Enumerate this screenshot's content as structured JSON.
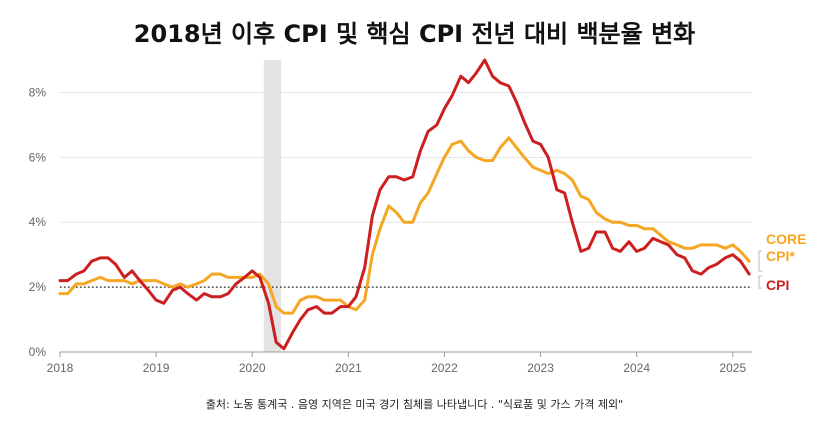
{
  "title": "2018년 이후 CPI 및 핵심 CPI 전년 대비 백분율 변화",
  "source_note": "출처: 노동 통계국 . 음영 지역은 미국 경기 침체를 나타냅니다 . \"식료품 및 가스 가격 제외\"",
  "chart_data": {
    "type": "line",
    "ylim": [
      0,
      9
    ],
    "xlim": [
      2018,
      2025.2
    ],
    "yticks": [
      {
        "value": 0,
        "label": "0%"
      },
      {
        "value": 2,
        "label": "2%"
      },
      {
        "value": 4,
        "label": "4%"
      },
      {
        "value": 6,
        "label": "6%"
      },
      {
        "value": 8,
        "label": "8%"
      }
    ],
    "xticks": [
      {
        "value": 2018,
        "label": "2018"
      },
      {
        "value": 2019,
        "label": "2019"
      },
      {
        "value": 2020,
        "label": "2020"
      },
      {
        "value": 2021,
        "label": "2021"
      },
      {
        "value": 2022,
        "label": "2022"
      },
      {
        "value": 2023,
        "label": "2023"
      },
      {
        "value": 2024,
        "label": "2024"
      },
      {
        "value": 2025,
        "label": "2025"
      }
    ],
    "reference_line": 2,
    "recession": [
      2020.12,
      2020.3
    ],
    "series": [
      {
        "name": "CPI",
        "label": "CPI",
        "color": "#cc1f1f",
        "values": [
          [
            2018.0,
            2.2
          ],
          [
            2018.08,
            2.2
          ],
          [
            2018.17,
            2.4
          ],
          [
            2018.25,
            2.5
          ],
          [
            2018.33,
            2.8
          ],
          [
            2018.42,
            2.9
          ],
          [
            2018.5,
            2.9
          ],
          [
            2018.58,
            2.7
          ],
          [
            2018.67,
            2.3
          ],
          [
            2018.75,
            2.5
          ],
          [
            2018.83,
            2.2
          ],
          [
            2018.92,
            1.9
          ],
          [
            2019.0,
            1.6
          ],
          [
            2019.08,
            1.5
          ],
          [
            2019.17,
            1.9
          ],
          [
            2019.25,
            2.0
          ],
          [
            2019.33,
            1.8
          ],
          [
            2019.42,
            1.6
          ],
          [
            2019.5,
            1.8
          ],
          [
            2019.58,
            1.7
          ],
          [
            2019.67,
            1.7
          ],
          [
            2019.75,
            1.8
          ],
          [
            2019.83,
            2.1
          ],
          [
            2019.92,
            2.3
          ],
          [
            2020.0,
            2.5
          ],
          [
            2020.08,
            2.3
          ],
          [
            2020.17,
            1.5
          ],
          [
            2020.25,
            0.3
          ],
          [
            2020.33,
            0.1
          ],
          [
            2020.42,
            0.6
          ],
          [
            2020.5,
            1.0
          ],
          [
            2020.58,
            1.3
          ],
          [
            2020.67,
            1.4
          ],
          [
            2020.75,
            1.2
          ],
          [
            2020.83,
            1.2
          ],
          [
            2020.92,
            1.4
          ],
          [
            2021.0,
            1.4
          ],
          [
            2021.08,
            1.7
          ],
          [
            2021.17,
            2.6
          ],
          [
            2021.25,
            4.2
          ],
          [
            2021.33,
            5.0
          ],
          [
            2021.42,
            5.4
          ],
          [
            2021.5,
            5.4
          ],
          [
            2021.58,
            5.3
          ],
          [
            2021.67,
            5.4
          ],
          [
            2021.75,
            6.2
          ],
          [
            2021.83,
            6.8
          ],
          [
            2021.92,
            7.0
          ],
          [
            2022.0,
            7.5
          ],
          [
            2022.08,
            7.9
          ],
          [
            2022.17,
            8.5
          ],
          [
            2022.25,
            8.3
          ],
          [
            2022.33,
            8.6
          ],
          [
            2022.42,
            9.0
          ],
          [
            2022.5,
            8.5
          ],
          [
            2022.58,
            8.3
          ],
          [
            2022.67,
            8.2
          ],
          [
            2022.75,
            7.7
          ],
          [
            2022.83,
            7.1
          ],
          [
            2022.92,
            6.5
          ],
          [
            2023.0,
            6.4
          ],
          [
            2023.08,
            6.0
          ],
          [
            2023.17,
            5.0
          ],
          [
            2023.25,
            4.9
          ],
          [
            2023.33,
            4.0
          ],
          [
            2023.42,
            3.1
          ],
          [
            2023.5,
            3.2
          ],
          [
            2023.58,
            3.7
          ],
          [
            2023.67,
            3.7
          ],
          [
            2023.75,
            3.2
          ],
          [
            2023.83,
            3.1
          ],
          [
            2023.92,
            3.4
          ],
          [
            2024.0,
            3.1
          ],
          [
            2024.08,
            3.2
          ],
          [
            2024.17,
            3.5
          ],
          [
            2024.25,
            3.4
          ],
          [
            2024.33,
            3.3
          ],
          [
            2024.42,
            3.0
          ],
          [
            2024.5,
            2.9
          ],
          [
            2024.58,
            2.5
          ],
          [
            2024.67,
            2.4
          ],
          [
            2024.75,
            2.6
          ],
          [
            2024.83,
            2.7
          ],
          [
            2024.92,
            2.9
          ],
          [
            2025.0,
            3.0
          ],
          [
            2025.08,
            2.8
          ],
          [
            2025.17,
            2.4
          ]
        ]
      },
      {
        "name": "CORE CPI*",
        "label_lines": [
          "CORE",
          "CPI*"
        ],
        "color": "#f5a623",
        "values": [
          [
            2018.0,
            1.8
          ],
          [
            2018.08,
            1.8
          ],
          [
            2018.17,
            2.1
          ],
          [
            2018.25,
            2.1
          ],
          [
            2018.33,
            2.2
          ],
          [
            2018.42,
            2.3
          ],
          [
            2018.5,
            2.2
          ],
          [
            2018.58,
            2.2
          ],
          [
            2018.67,
            2.2
          ],
          [
            2018.75,
            2.1
          ],
          [
            2018.83,
            2.2
          ],
          [
            2018.92,
            2.2
          ],
          [
            2019.0,
            2.2
          ],
          [
            2019.08,
            2.1
          ],
          [
            2019.17,
            2.0
          ],
          [
            2019.25,
            2.1
          ],
          [
            2019.33,
            2.0
          ],
          [
            2019.42,
            2.1
          ],
          [
            2019.5,
            2.2
          ],
          [
            2019.58,
            2.4
          ],
          [
            2019.67,
            2.4
          ],
          [
            2019.75,
            2.3
          ],
          [
            2019.83,
            2.3
          ],
          [
            2019.92,
            2.3
          ],
          [
            2020.0,
            2.3
          ],
          [
            2020.08,
            2.4
          ],
          [
            2020.17,
            2.1
          ],
          [
            2020.25,
            1.4
          ],
          [
            2020.33,
            1.2
          ],
          [
            2020.42,
            1.2
          ],
          [
            2020.5,
            1.6
          ],
          [
            2020.58,
            1.7
          ],
          [
            2020.67,
            1.7
          ],
          [
            2020.75,
            1.6
          ],
          [
            2020.83,
            1.6
          ],
          [
            2020.92,
            1.6
          ],
          [
            2021.0,
            1.4
          ],
          [
            2021.08,
            1.3
          ],
          [
            2021.17,
            1.6
          ],
          [
            2021.25,
            3.0
          ],
          [
            2021.33,
            3.8
          ],
          [
            2021.42,
            4.5
          ],
          [
            2021.5,
            4.3
          ],
          [
            2021.58,
            4.0
          ],
          [
            2021.67,
            4.0
          ],
          [
            2021.75,
            4.6
          ],
          [
            2021.83,
            4.9
          ],
          [
            2021.92,
            5.5
          ],
          [
            2022.0,
            6.0
          ],
          [
            2022.08,
            6.4
          ],
          [
            2022.17,
            6.5
          ],
          [
            2022.25,
            6.2
          ],
          [
            2022.33,
            6.0
          ],
          [
            2022.42,
            5.9
          ],
          [
            2022.5,
            5.9
          ],
          [
            2022.58,
            6.3
          ],
          [
            2022.67,
            6.6
          ],
          [
            2022.75,
            6.3
          ],
          [
            2022.83,
            6.0
          ],
          [
            2022.92,
            5.7
          ],
          [
            2023.0,
            5.6
          ],
          [
            2023.08,
            5.5
          ],
          [
            2023.17,
            5.6
          ],
          [
            2023.25,
            5.5
          ],
          [
            2023.33,
            5.3
          ],
          [
            2023.42,
            4.8
          ],
          [
            2023.5,
            4.7
          ],
          [
            2023.58,
            4.3
          ],
          [
            2023.67,
            4.1
          ],
          [
            2023.75,
            4.0
          ],
          [
            2023.83,
            4.0
          ],
          [
            2023.92,
            3.9
          ],
          [
            2024.0,
            3.9
          ],
          [
            2024.08,
            3.8
          ],
          [
            2024.17,
            3.8
          ],
          [
            2024.25,
            3.6
          ],
          [
            2024.33,
            3.4
          ],
          [
            2024.42,
            3.3
          ],
          [
            2024.5,
            3.2
          ],
          [
            2024.58,
            3.2
          ],
          [
            2024.67,
            3.3
          ],
          [
            2024.75,
            3.3
          ],
          [
            2024.83,
            3.3
          ],
          [
            2024.92,
            3.2
          ],
          [
            2025.0,
            3.3
          ],
          [
            2025.08,
            3.1
          ],
          [
            2025.17,
            2.8
          ]
        ]
      }
    ]
  }
}
